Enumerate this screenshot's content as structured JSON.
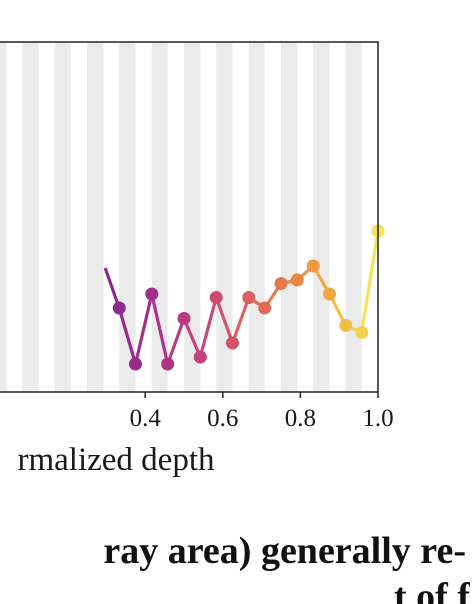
{
  "chart_data": {
    "type": "line",
    "xlabel": "rmalized depth",
    "xlim": [
      0.0,
      1.0
    ],
    "x_ticks": [
      0.4,
      0.6,
      0.8,
      1.0
    ],
    "x_tick_labels": [
      "0.4",
      "0.6",
      "0.8",
      "1.0"
    ],
    "ylim": [
      0,
      1
    ],
    "grid": false,
    "shaded_bands_description_x": [
      [
        0.0,
        0.042
      ],
      [
        0.083,
        0.125
      ],
      [
        0.167,
        0.208
      ],
      [
        0.25,
        0.292
      ],
      [
        0.333,
        0.375
      ],
      [
        0.417,
        0.458
      ],
      [
        0.5,
        0.542
      ],
      [
        0.583,
        0.625
      ],
      [
        0.667,
        0.708
      ],
      [
        0.75,
        0.792
      ],
      [
        0.833,
        0.875
      ],
      [
        0.917,
        0.958
      ]
    ],
    "shaded_band_color": "#ebebeb",
    "colormap": "plasma-like",
    "series": [
      {
        "x": [
          0.333,
          0.375,
          0.417,
          0.458,
          0.5,
          0.542,
          0.583,
          0.625,
          0.667,
          0.708,
          0.75,
          0.792,
          0.833,
          0.875,
          0.917,
          0.958,
          1.0
        ],
        "y": [
          0.24,
          0.08,
          0.28,
          0.08,
          0.21,
          0.1,
          0.27,
          0.14,
          0.27,
          0.24,
          0.31,
          0.32,
          0.36,
          0.28,
          0.19,
          0.17,
          0.46
        ],
        "colors": [
          "#8e2a8f",
          "#962a8e",
          "#a22f8c",
          "#ad3486",
          "#bb3b7f",
          "#c44179",
          "#cc4a72",
          "#d4526a",
          "#dc5f61",
          "#e06a5a",
          "#e57a4f",
          "#ea8746",
          "#ee9840",
          "#f0a83f",
          "#f1bf45",
          "#f2d24c",
          "#f5e35a"
        ]
      }
    ]
  },
  "caption": {
    "line1": "ray area) generally re-",
    "line2": "t  of f"
  }
}
